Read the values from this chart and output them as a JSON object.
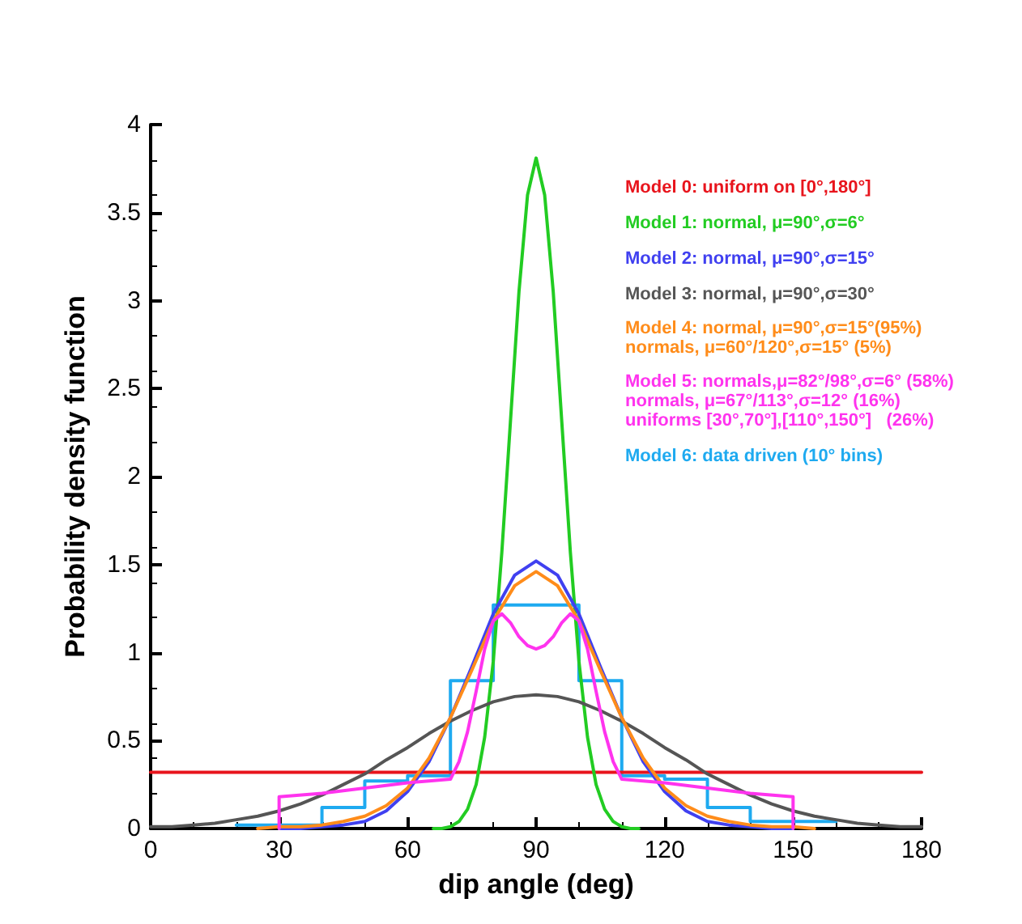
{
  "chart_data": {
    "type": "line",
    "xlabel": "dip angle (deg)",
    "ylabel": "Probability density function",
    "xlim": [
      0,
      180
    ],
    "ylim": [
      0,
      4
    ],
    "xticks": [
      0,
      30,
      60,
      90,
      120,
      150,
      180
    ],
    "yticks": [
      0,
      0.5,
      1,
      1.5,
      2,
      2.5,
      3,
      3.5,
      4
    ],
    "grid": false,
    "legend": "top right",
    "marker": "none",
    "line_style": "solid",
    "series": [
      {
        "name": "Model 0: uniform on [0°,180°]",
        "color": "#e8141c",
        "x": [
          0,
          180
        ],
        "values": [
          0.32,
          0.32
        ]
      },
      {
        "name": "Model 1: normal, μ=90°,σ=6°",
        "color": "#22cc22",
        "x": [
          66,
          68,
          70,
          72,
          74,
          76,
          78,
          80,
          82,
          84,
          86,
          88,
          90,
          92,
          94,
          96,
          98,
          100,
          102,
          104,
          106,
          108,
          110,
          112,
          114
        ],
        "values": [
          0,
          0,
          0.01,
          0.04,
          0.11,
          0.25,
          0.52,
          0.95,
          1.57,
          2.31,
          3.05,
          3.6,
          3.81,
          3.6,
          3.05,
          2.31,
          1.57,
          0.95,
          0.52,
          0.25,
          0.11,
          0.04,
          0.01,
          0,
          0
        ]
      },
      {
        "name": "Model 2: normal, μ=90°,σ=15°",
        "color": "#4040f0",
        "x": [
          30,
          35,
          40,
          45,
          50,
          55,
          60,
          65,
          70,
          75,
          80,
          85,
          90,
          95,
          100,
          105,
          110,
          115,
          120,
          125,
          130,
          135,
          140,
          145,
          150
        ],
        "values": [
          0,
          0,
          0.01,
          0.02,
          0.04,
          0.1,
          0.21,
          0.38,
          0.63,
          0.92,
          1.22,
          1.44,
          1.52,
          1.44,
          1.22,
          0.92,
          0.63,
          0.38,
          0.21,
          0.1,
          0.04,
          0.02,
          0.01,
          0,
          0
        ]
      },
      {
        "name": "Model 3: normal, μ=90°,σ=30°",
        "color": "#555555",
        "x": [
          0,
          5,
          10,
          15,
          20,
          25,
          30,
          35,
          40,
          45,
          50,
          55,
          60,
          65,
          70,
          75,
          80,
          85,
          90,
          95,
          100,
          105,
          110,
          115,
          120,
          125,
          130,
          135,
          140,
          145,
          150,
          155,
          160,
          165,
          170,
          175,
          180
        ],
        "values": [
          0.01,
          0.01,
          0.02,
          0.03,
          0.05,
          0.07,
          0.1,
          0.14,
          0.19,
          0.25,
          0.31,
          0.39,
          0.46,
          0.54,
          0.61,
          0.67,
          0.72,
          0.75,
          0.76,
          0.75,
          0.72,
          0.67,
          0.61,
          0.54,
          0.46,
          0.39,
          0.31,
          0.25,
          0.19,
          0.14,
          0.1,
          0.07,
          0.05,
          0.03,
          0.02,
          0.01,
          0.01
        ]
      },
      {
        "name": "Model 4: normal, μ=90°,σ=15°(95%)\nnormals, μ=60°/120°,σ=15° (5%)",
        "color": "#ff8c1a",
        "x": [
          25,
          30,
          35,
          40,
          45,
          50,
          55,
          60,
          65,
          70,
          75,
          80,
          85,
          90,
          95,
          100,
          105,
          110,
          115,
          120,
          125,
          130,
          135,
          140,
          145,
          150,
          155
        ],
        "values": [
          0,
          0.01,
          0.01,
          0.02,
          0.04,
          0.07,
          0.13,
          0.23,
          0.4,
          0.63,
          0.9,
          1.18,
          1.38,
          1.46,
          1.38,
          1.18,
          0.9,
          0.63,
          0.4,
          0.23,
          0.13,
          0.07,
          0.04,
          0.02,
          0.01,
          0.01,
          0
        ]
      },
      {
        "name": "Model 5: normals,μ=82°/98°,σ=6° (58%)\nnormals, μ=67°/113°,σ=12° (16%)\nuniforms [30°,70°],[110°,150°]   (26%)",
        "color": "#ff33ee",
        "x": [
          30,
          30,
          40,
          50,
          60,
          65,
          70,
          72,
          74,
          76,
          78,
          80,
          82,
          84,
          86,
          88,
          90,
          92,
          94,
          96,
          98,
          100,
          102,
          104,
          106,
          108,
          110,
          115,
          120,
          130,
          140,
          150,
          150
        ],
        "values": [
          0,
          0.18,
          0.2,
          0.23,
          0.26,
          0.27,
          0.28,
          0.38,
          0.55,
          0.78,
          1.02,
          1.18,
          1.22,
          1.17,
          1.09,
          1.04,
          1.02,
          1.04,
          1.09,
          1.17,
          1.22,
          1.18,
          1.02,
          0.78,
          0.55,
          0.38,
          0.28,
          0.27,
          0.26,
          0.23,
          0.2,
          0.18,
          0
        ]
      },
      {
        "name": "Model 6: data driven (10° bins)",
        "color": "#1eaaf0",
        "type": "histogram",
        "bins": [
          20,
          30,
          40,
          50,
          60,
          70,
          80,
          90,
          100,
          110,
          120,
          130,
          140,
          150,
          160
        ],
        "values": [
          0.02,
          0.02,
          0.12,
          0.27,
          0.3,
          0.84,
          1.27,
          1.27,
          0.84,
          0.3,
          0.28,
          0.12,
          0.04,
          0.04
        ]
      }
    ]
  }
}
